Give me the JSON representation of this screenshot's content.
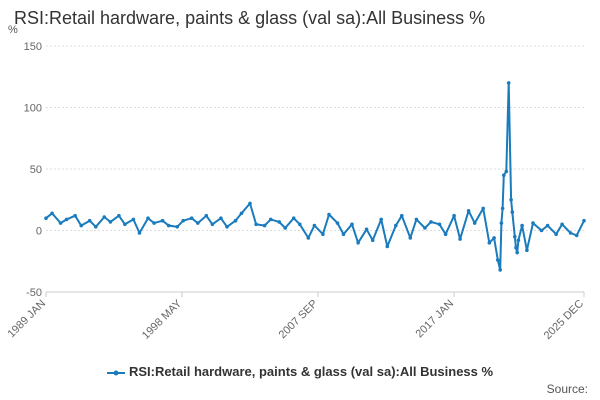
{
  "chart_data": {
    "type": "line",
    "title": "RSI:Retail hardware, paints & glass (val sa):All Business %",
    "ylabel": "%",
    "ylim": [
      -50,
      150
    ],
    "y_ticks": [
      "150",
      "100",
      "50",
      "0",
      "-50"
    ],
    "x_tick_labels": [
      "1989 JAN",
      "1998 MAY",
      "2007 SEP",
      "2017 JAN",
      "2025 DEC"
    ],
    "x_range": [
      "1989-01",
      "2025-12"
    ],
    "grid": true,
    "legend_position": "bottom",
    "series": [
      {
        "name": "RSI:Retail hardware, paints & glass (val sa):All Business %",
        "color": "#1a7bbd",
        "x": [
          "1989-01",
          "1989-06",
          "1990-01",
          "1990-06",
          "1991-01",
          "1991-06",
          "1992-01",
          "1992-06",
          "1993-01",
          "1993-06",
          "1994-01",
          "1994-06",
          "1995-01",
          "1995-06",
          "1996-01",
          "1996-06",
          "1997-01",
          "1997-06",
          "1998-01",
          "1998-06",
          "1999-01",
          "1999-06",
          "2000-01",
          "2000-06",
          "2001-01",
          "2001-06",
          "2002-01",
          "2002-06",
          "2003-01",
          "2003-06",
          "2004-01",
          "2004-06",
          "2005-01",
          "2005-06",
          "2006-01",
          "2006-06",
          "2007-01",
          "2007-06",
          "2008-01",
          "2008-06",
          "2009-01",
          "2009-06",
          "2010-01",
          "2010-06",
          "2011-01",
          "2011-06",
          "2012-01",
          "2012-06",
          "2013-01",
          "2013-06",
          "2014-01",
          "2014-06",
          "2015-01",
          "2015-06",
          "2016-01",
          "2016-06",
          "2017-01",
          "2017-06",
          "2018-01",
          "2018-06",
          "2019-01",
          "2019-06",
          "2019-10",
          "2020-01",
          "2020-03",
          "2020-04",
          "2020-05",
          "2020-06",
          "2020-08",
          "2020-10",
          "2020-12",
          "2021-01",
          "2021-03",
          "2021-04",
          "2021-05",
          "2021-06",
          "2021-09",
          "2022-01",
          "2022-06",
          "2023-01",
          "2023-06",
          "2024-01",
          "2024-06",
          "2025-01",
          "2025-06",
          "2025-12"
        ],
        "values": [
          10,
          14,
          6,
          9,
          12,
          4,
          8,
          3,
          11,
          7,
          12,
          5,
          9,
          -2,
          10,
          6,
          8,
          4,
          3,
          8,
          10,
          6,
          12,
          5,
          10,
          3,
          8,
          14,
          22,
          5,
          4,
          9,
          7,
          2,
          10,
          5,
          -6,
          4,
          -3,
          13,
          6,
          -3,
          5,
          -10,
          1,
          -8,
          9,
          -13,
          4,
          12,
          -6,
          9,
          2,
          7,
          5,
          -3,
          12,
          -7,
          16,
          6,
          18,
          -10,
          -6,
          -24,
          -32,
          6,
          18,
          45,
          48,
          120,
          25,
          15,
          -5,
          -14,
          -18,
          -8,
          4,
          -16,
          6,
          0,
          4,
          -3,
          5,
          -2,
          -4,
          8
        ]
      }
    ],
    "source_label": "Source:"
  }
}
